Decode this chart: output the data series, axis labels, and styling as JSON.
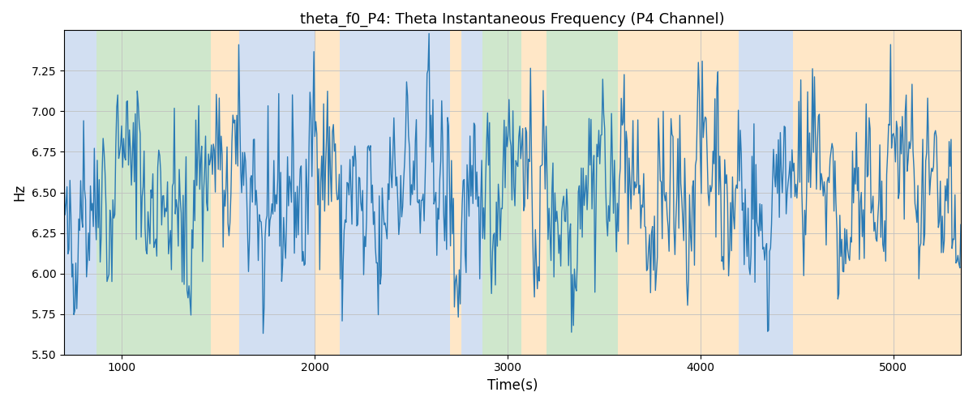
{
  "title": "theta_f0_P4: Theta Instantaneous Frequency (P4 Channel)",
  "xlabel": "Time(s)",
  "ylabel": "Hz",
  "ylim": [
    5.5,
    7.5
  ],
  "xlim": [
    700,
    5350
  ],
  "line_color": "#2a7ab5",
  "line_width": 1.0,
  "bg_regions": [
    {
      "xmin": 700,
      "xmax": 870,
      "color": "#aec6e8",
      "alpha": 0.55
    },
    {
      "xmin": 870,
      "xmax": 1460,
      "color": "#a8d5a2",
      "alpha": 0.55
    },
    {
      "xmin": 1460,
      "xmax": 1610,
      "color": "#ffd59a",
      "alpha": 0.55
    },
    {
      "xmin": 1610,
      "xmax": 2000,
      "color": "#aec6e8",
      "alpha": 0.55
    },
    {
      "xmin": 2000,
      "xmax": 2130,
      "color": "#ffd59a",
      "alpha": 0.55
    },
    {
      "xmin": 2130,
      "xmax": 2700,
      "color": "#aec6e8",
      "alpha": 0.55
    },
    {
      "xmin": 2700,
      "xmax": 2760,
      "color": "#ffd59a",
      "alpha": 0.55
    },
    {
      "xmin": 2760,
      "xmax": 2870,
      "color": "#aec6e8",
      "alpha": 0.55
    },
    {
      "xmin": 2870,
      "xmax": 3070,
      "color": "#a8d5a2",
      "alpha": 0.55
    },
    {
      "xmin": 3070,
      "xmax": 3200,
      "color": "#ffd59a",
      "alpha": 0.55
    },
    {
      "xmin": 3200,
      "xmax": 3570,
      "color": "#a8d5a2",
      "alpha": 0.55
    },
    {
      "xmin": 3570,
      "xmax": 4200,
      "color": "#ffd59a",
      "alpha": 0.55
    },
    {
      "xmin": 4200,
      "xmax": 4480,
      "color": "#aec6e8",
      "alpha": 0.55
    },
    {
      "xmin": 4480,
      "xmax": 4640,
      "color": "#ffd59a",
      "alpha": 0.55
    },
    {
      "xmin": 4640,
      "xmax": 5350,
      "color": "#ffd59a",
      "alpha": 0.55
    }
  ],
  "seed": 42,
  "n_points": 920,
  "t_start": 700,
  "t_end": 5350,
  "base_freq": 6.5,
  "noise_scale": 0.22,
  "title_fontsize": 13
}
